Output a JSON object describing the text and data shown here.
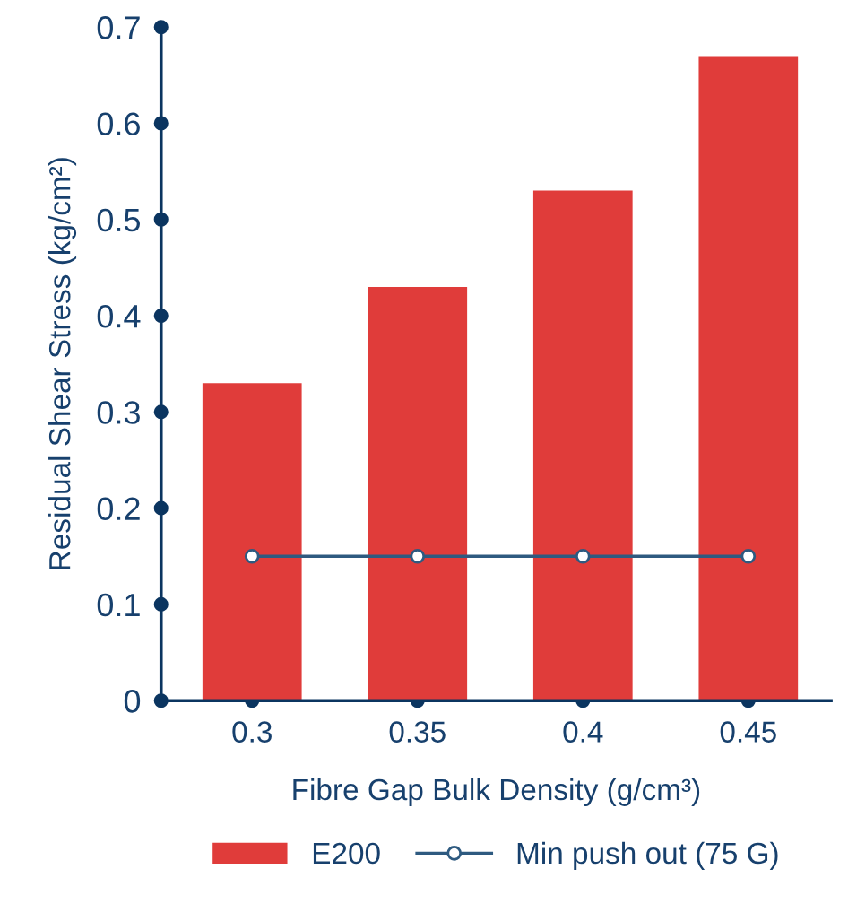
{
  "chart_data": {
    "type": "bar",
    "xlabel": "Fibre Gap Bulk Density (g/cm³)",
    "ylabel": "Residual Shear Stress (kg/cm²)",
    "categories": [
      "0.3",
      "0.35",
      "0.4",
      "0.45"
    ],
    "series": [
      {
        "name": "E200",
        "color": "#e03c3a",
        "values": [
          0.33,
          0.43,
          0.53,
          0.67
        ]
      },
      {
        "name": "Min push out (75 G)",
        "type": "line",
        "color": "#2e5a80",
        "marker": "circle",
        "values": [
          0.15,
          0.15,
          0.15,
          0.15
        ]
      }
    ],
    "ylim": [
      0,
      0.7
    ],
    "yticks": [
      0,
      0.1,
      0.2,
      0.3,
      0.4,
      0.5,
      0.6,
      0.7
    ],
    "grid": false,
    "legend": "bottom"
  }
}
